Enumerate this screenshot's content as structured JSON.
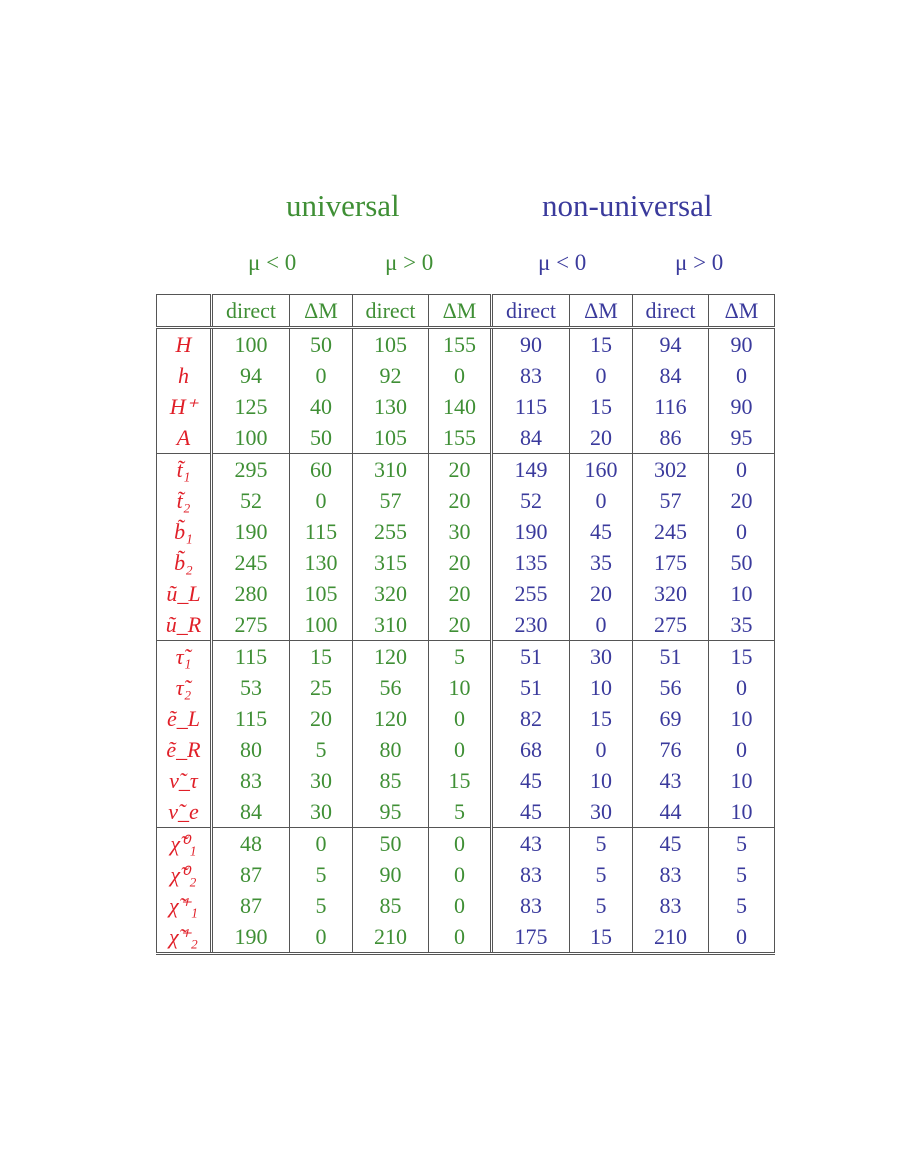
{
  "groups": {
    "universal": "universal",
    "non_universal": "non-universal"
  },
  "mu": {
    "neg": "μ < 0",
    "pos": "μ > 0"
  },
  "columns": [
    "direct",
    "ΔM",
    "direct",
    "ΔM",
    "direct",
    "ΔM",
    "direct",
    "ΔM"
  ],
  "colors": {
    "universal": "#3f8f35",
    "non_universal": "#3a3a9c",
    "particle": "#e01f28"
  },
  "rows": [
    {
      "p": "H",
      "v": [
        "100",
        "50",
        "105",
        "155",
        "90",
        "15",
        "94",
        "90"
      ]
    },
    {
      "p": "h",
      "v": [
        "94",
        "0",
        "92",
        "0",
        "83",
        "0",
        "84",
        "0"
      ]
    },
    {
      "p": "H⁺",
      "v": [
        "125",
        "40",
        "130",
        "140",
        "115",
        "15",
        "116",
        "90"
      ]
    },
    {
      "p": "A",
      "v": [
        "100",
        "50",
        "105",
        "155",
        "84",
        "20",
        "86",
        "95"
      ]
    },
    {
      "p": "t̃₁",
      "v": [
        "295",
        "60",
        "310",
        "20",
        "149",
        "160",
        "302",
        "0"
      ]
    },
    {
      "p": "t̃₂",
      "v": [
        "52",
        "0",
        "57",
        "20",
        "52",
        "0",
        "57",
        "20"
      ]
    },
    {
      "p": "b̃₁",
      "v": [
        "190",
        "115",
        "255",
        "30",
        "190",
        "45",
        "245",
        "0"
      ]
    },
    {
      "p": "b̃₂",
      "v": [
        "245",
        "130",
        "315",
        "20",
        "135",
        "35",
        "175",
        "50"
      ]
    },
    {
      "p": "ũ_L",
      "v": [
        "280",
        "105",
        "320",
        "20",
        "255",
        "20",
        "320",
        "10"
      ]
    },
    {
      "p": "ũ_R",
      "v": [
        "275",
        "100",
        "310",
        "20",
        "230",
        "0",
        "275",
        "35"
      ]
    },
    {
      "p": "τ̃₁",
      "v": [
        "115",
        "15",
        "120",
        "5",
        "51",
        "30",
        "51",
        "15"
      ]
    },
    {
      "p": "τ̃₂",
      "v": [
        "53",
        "25",
        "56",
        "10",
        "51",
        "10",
        "56",
        "0"
      ]
    },
    {
      "p": "ẽ_L",
      "v": [
        "115",
        "20",
        "120",
        "0",
        "82",
        "15",
        "69",
        "10"
      ]
    },
    {
      "p": "ẽ_R",
      "v": [
        "80",
        "5",
        "80",
        "0",
        "68",
        "0",
        "76",
        "0"
      ]
    },
    {
      "p": "ν̃_τ",
      "v": [
        "83",
        "30",
        "85",
        "15",
        "45",
        "10",
        "43",
        "10"
      ]
    },
    {
      "p": "ν̃_e",
      "v": [
        "84",
        "30",
        "95",
        "5",
        "45",
        "30",
        "44",
        "10"
      ]
    },
    {
      "p": "χ̃⁰₁",
      "v": [
        "48",
        "0",
        "50",
        "0",
        "43",
        "5",
        "45",
        "5"
      ]
    },
    {
      "p": "χ̃⁰₂",
      "v": [
        "87",
        "5",
        "90",
        "0",
        "83",
        "5",
        "83",
        "5"
      ]
    },
    {
      "p": "χ̃⁺₁",
      "v": [
        "87",
        "5",
        "85",
        "0",
        "83",
        "5",
        "83",
        "5"
      ]
    },
    {
      "p": "χ̃⁺₂",
      "v": [
        "190",
        "0",
        "210",
        "0",
        "175",
        "15",
        "210",
        "0"
      ]
    }
  ]
}
